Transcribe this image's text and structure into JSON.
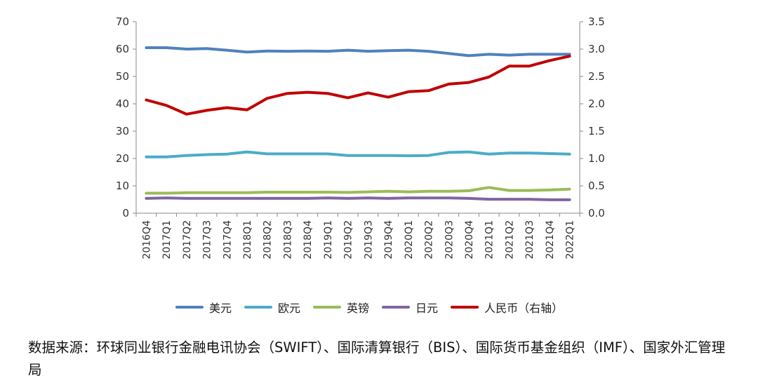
{
  "chart_data": {
    "type": "line",
    "categories": [
      "2016Q4",
      "2017Q1",
      "2017Q2",
      "2017Q3",
      "2017Q4",
      "2018Q1",
      "2018Q2",
      "2018Q3",
      "2018Q4",
      "2019Q1",
      "2019Q2",
      "2019Q3",
      "2019Q4",
      "2020Q1",
      "2020Q2",
      "2020Q3",
      "2020Q4",
      "2021Q1",
      "2021Q2",
      "2021Q3",
      "2021Q4",
      "2022Q1"
    ],
    "y_left": {
      "ylim": [
        0,
        70
      ],
      "ticks": [
        "0",
        "10",
        "20",
        "30",
        "40",
        "50",
        "60",
        "70"
      ]
    },
    "y_right": {
      "ylim": [
        0,
        3.5
      ],
      "ticks": [
        "0.0",
        "0.5",
        "1.0",
        "1.5",
        "2.0",
        "2.5",
        "3.0",
        "3.5"
      ]
    },
    "series": [
      {
        "name": "美元",
        "axis": "left",
        "color": "#4F81BD",
        "values": [
          60.5,
          60.5,
          60.0,
          60.2,
          59.6,
          58.9,
          59.3,
          59.2,
          59.3,
          59.2,
          59.6,
          59.2,
          59.4,
          59.6,
          59.2,
          58.4,
          57.6,
          58.1,
          57.8,
          58.1,
          58.1,
          58.1
        ]
      },
      {
        "name": "欧元",
        "axis": "left",
        "color": "#4BACC6",
        "values": [
          20.6,
          20.6,
          21.1,
          21.4,
          21.6,
          22.4,
          21.7,
          21.7,
          21.7,
          21.7,
          21.1,
          21.1,
          21.1,
          21.0,
          21.1,
          22.2,
          22.4,
          21.6,
          22.0,
          22.0,
          21.8,
          21.6
        ]
      },
      {
        "name": "英镑",
        "axis": "left",
        "color": "#9BBB59",
        "values": [
          7.3,
          7.3,
          7.5,
          7.5,
          7.5,
          7.5,
          7.7,
          7.7,
          7.7,
          7.7,
          7.6,
          7.8,
          8.0,
          7.8,
          8.0,
          8.0,
          8.2,
          9.4,
          8.3,
          8.3,
          8.5,
          8.8
        ]
      },
      {
        "name": "日元",
        "axis": "left",
        "color": "#8064A2",
        "values": [
          5.4,
          5.6,
          5.4,
          5.4,
          5.4,
          5.4,
          5.4,
          5.4,
          5.4,
          5.6,
          5.4,
          5.6,
          5.4,
          5.6,
          5.6,
          5.6,
          5.4,
          5.1,
          5.1,
          5.1,
          4.9,
          4.9
        ]
      },
      {
        "name": "人民币（右轴）",
        "axis": "right",
        "color": "#C00000",
        "values": [
          2.07,
          1.97,
          1.81,
          1.88,
          1.93,
          1.89,
          2.1,
          2.19,
          2.21,
          2.19,
          2.11,
          2.2,
          2.12,
          2.22,
          2.24,
          2.36,
          2.39,
          2.49,
          2.69,
          2.69,
          2.79,
          2.87
        ]
      }
    ],
    "grid": false,
    "legend": "bottom"
  },
  "source_note": "数据来源：环球同业银行金融电讯协会（SWIFT）、国际清算银行（BIS）、国际货币基金组织（IMF）、国家外汇管理局"
}
